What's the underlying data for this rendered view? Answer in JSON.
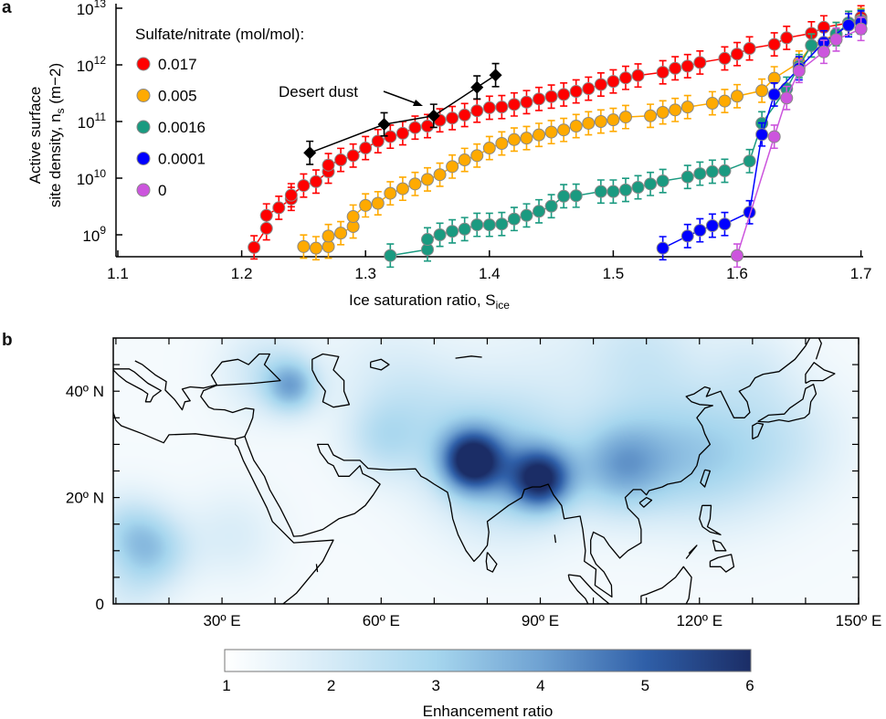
{
  "panel_a_letter": "a",
  "panel_b_letter": "b",
  "chart_data": [
    {
      "type": "scatter",
      "panel": "a",
      "xlabel": "Ice saturation ratio, S",
      "xlabel_sub": "ice",
      "ylabel_line1": "Active surface",
      "ylabel_line2": "site density, n",
      "ylabel_sub": "s",
      "ylabel_unit": "(m−2)",
      "xlim": [
        1.1,
        1.7
      ],
      "ylim": [
        410000000.0,
        10000000000000.0
      ],
      "yscale": "log",
      "x_ticks": [
        "1.1",
        "1.2",
        "1.3",
        "1.4",
        "1.5",
        "1.6",
        "1.7"
      ],
      "y_ticks": [
        {
          "base": "10",
          "exp": "9"
        },
        {
          "base": "10",
          "exp": "10"
        },
        {
          "base": "10",
          "exp": "11"
        },
        {
          "base": "10",
          "exp": "12"
        },
        {
          "base": "10",
          "exp": "13"
        }
      ],
      "grid": false,
      "legend_title": "Sulfate/nitrate (mol/mol):",
      "legend_placement": "top-left",
      "error_factor": 1.6,
      "annotation": "Desert dust",
      "series": [
        {
          "name": "0.017",
          "color": "#ff0000",
          "x": [
            1.21,
            1.22,
            1.22,
            1.23,
            1.24,
            1.24,
            1.25,
            1.26,
            1.27,
            1.27,
            1.28,
            1.29,
            1.3,
            1.31,
            1.32,
            1.33,
            1.34,
            1.35,
            1.36,
            1.37,
            1.38,
            1.39,
            1.4,
            1.41,
            1.42,
            1.43,
            1.44,
            1.45,
            1.46,
            1.47,
            1.48,
            1.49,
            1.5,
            1.51,
            1.52,
            1.54,
            1.55,
            1.56,
            1.57,
            1.59,
            1.6,
            1.61,
            1.63,
            1.64,
            1.66,
            1.67,
            1.69,
            1.7
          ],
          "y": [
            600000000.0,
            1300000000.0,
            2200000000.0,
            3000000000.0,
            4300000000.0,
            5000000000.0,
            7400000000.0,
            8700000000.0,
            13000000000.0,
            17000000000.0,
            21000000000.0,
            25000000000.0,
            34000000000.0,
            45000000000.0,
            54000000000.0,
            62000000000.0,
            78000000000.0,
            83000000000.0,
            105000000000.0,
            115000000000.0,
            130000000000.0,
            155000000000.0,
            175000000000.0,
            180000000000.0,
            200000000000.0,
            220000000000.0,
            250000000000.0,
            275000000000.0,
            300000000000.0,
            340000000000.0,
            380000000000.0,
            450000000000.0,
            510000000000.0,
            590000000000.0,
            650000000000.0,
            740000000000.0,
            870000000000.0,
            950000000000.0,
            1100000000000.0,
            1300000000000.0,
            1550000000000.0,
            1950000000000.0,
            2300000000000.0,
            3000000000000.0,
            3600000000000.0,
            4600000000000.0,
            5500000000000.0,
            6900000000000.0
          ]
        },
        {
          "name": "0.005",
          "color": "#ffaa00",
          "x": [
            1.25,
            1.26,
            1.27,
            1.27,
            1.28,
            1.29,
            1.29,
            1.3,
            1.31,
            1.32,
            1.33,
            1.34,
            1.35,
            1.36,
            1.37,
            1.38,
            1.39,
            1.4,
            1.41,
            1.42,
            1.43,
            1.44,
            1.45,
            1.46,
            1.47,
            1.48,
            1.49,
            1.5,
            1.51,
            1.53,
            1.54,
            1.55,
            1.56,
            1.58,
            1.59,
            1.6,
            1.62,
            1.63,
            1.65,
            1.66,
            1.68,
            1.69,
            1.7
          ],
          "y": [
            620000000.0,
            580000000.0,
            620000000.0,
            950000000.0,
            1070000000.0,
            1400000000.0,
            2100000000.0,
            3300000000.0,
            3600000000.0,
            5400000000.0,
            6500000000.0,
            7900000000.0,
            9500000000.0,
            11500000000.0,
            16000000000.0,
            21000000000.0,
            25000000000.0,
            34000000000.0,
            41000000000.0,
            48000000000.0,
            51000000000.0,
            58000000000.0,
            65000000000.0,
            71000000000.0,
            83000000000.0,
            93000000000.0,
            100000000000.0,
            107000000000.0,
            120000000000.0,
            126000000000.0,
            145000000000.0,
            160000000000.0,
            180000000000.0,
            210000000000.0,
            230000000000.0,
            280000000000.0,
            350000000000.0,
            580000000000.0,
            1100000000000.0,
            2200000000000.0,
            3500000000000.0,
            5500000000000.0,
            6200000000000.0
          ]
        },
        {
          "name": "0.0016",
          "color": "#1a9a80",
          "x": [
            1.32,
            1.35,
            1.35,
            1.36,
            1.37,
            1.38,
            1.39,
            1.4,
            1.41,
            1.42,
            1.43,
            1.44,
            1.45,
            1.46,
            1.47,
            1.49,
            1.5,
            1.51,
            1.52,
            1.53,
            1.54,
            1.56,
            1.57,
            1.58,
            1.59,
            1.61,
            1.62,
            1.64,
            1.65,
            1.66,
            1.67,
            1.68,
            1.69,
            1.7
          ],
          "y": [
            430000000.0,
            550000000.0,
            830000000.0,
            1000000000.0,
            1150000000.0,
            1260000000.0,
            1500000000.0,
            1500000000.0,
            1550000000.0,
            1900000000.0,
            2200000000.0,
            2600000000.0,
            3200000000.0,
            4800000000.0,
            4900000000.0,
            5800000000.0,
            5800000000.0,
            6200000000.0,
            6900000000.0,
            7900000000.0,
            8900000000.0,
            10500000000.0,
            12000000000.0,
            13000000000.0,
            13500000000.0,
            20000000000.0,
            93000000000.0,
            380000000000.0,
            950000000000.0,
            2200000000000.0,
            2500000000000.0,
            3500000000000.0,
            5500000000000.0,
            5900000000000.0
          ]
        },
        {
          "name": "0.0001",
          "color": "#0000ff",
          "x": [
            1.54,
            1.56,
            1.57,
            1.58,
            1.59,
            1.61,
            1.62,
            1.63,
            1.65,
            1.67,
            1.69,
            1.7
          ],
          "y": [
            580000000.0,
            950000000.0,
            1200000000.0,
            1450000000.0,
            1550000000.0,
            2500000000.0,
            59000000000.0,
            300000000000.0,
            870000000000.0,
            2500000000000.0,
            5000000000000.0,
            5600000000000.0
          ]
        },
        {
          "name": "0",
          "color": "#cc55dd",
          "x": [
            1.6,
            1.63,
            1.64,
            1.65,
            1.67,
            1.68,
            1.7
          ],
          "y": [
            430000000.0,
            54000000000.0,
            260000000000.0,
            780000000000.0,
            1700000000000.0,
            2800000000000.0,
            4300000000000.0
          ]
        }
      ],
      "desert_dust": {
        "color": "#000000",
        "x": [
          1.255,
          1.315,
          1.355,
          1.39,
          1.405
        ],
        "y": [
          28000000000.0,
          89000000000.0,
          126000000000.0,
          400000000000.0,
          660000000000.0
        ]
      }
    },
    {
      "type": "heatmap",
      "panel": "b",
      "lon_range": [
        9.5,
        150
      ],
      "lat_range": [
        0,
        50
      ],
      "x_ticks": [
        "30º E",
        "60º E",
        "90º E",
        "120º E",
        "150º E"
      ],
      "y_ticks": [
        "0",
        "20º N",
        "40º N"
      ],
      "colorbar_label": "Enhancement ratio",
      "colorbar_ticks": [
        "1",
        "2",
        "3",
        "4",
        "5",
        "6"
      ],
      "colorbar_range": [
        1,
        6
      ],
      "colormap": [
        "#ffffff",
        "#d6ebf7",
        "#a6d6ee",
        "#6fa2d2",
        "#2f5fa8",
        "#1b2d66"
      ],
      "hotspots": [
        {
          "lon": 77,
          "lat": 27,
          "value": 5.3,
          "radius": 4
        },
        {
          "lon": 90,
          "lat": 23.5,
          "value": 5.0,
          "radius": 4
        },
        {
          "lon": 83,
          "lat": 26,
          "value": 3.0,
          "radius": 9
        },
        {
          "lon": 105,
          "lat": 26,
          "value": 3.3,
          "radius": 6
        },
        {
          "lon": 115,
          "lat": 28,
          "value": 2.3,
          "radius": 8
        },
        {
          "lon": 125,
          "lat": 28,
          "value": 2.4,
          "radius": 9
        },
        {
          "lon": 138,
          "lat": 31,
          "value": 1.9,
          "radius": 8
        },
        {
          "lon": 43,
          "lat": 41,
          "value": 3.4,
          "radius": 3.5
        },
        {
          "lon": 38,
          "lat": 44,
          "value": 2.2,
          "radius": 6
        },
        {
          "lon": 60,
          "lat": 31,
          "value": 2.2,
          "radius": 5
        },
        {
          "lon": 68,
          "lat": 35,
          "value": 2.0,
          "radius": 8
        },
        {
          "lon": 17,
          "lat": 10,
          "value": 2.8,
          "radius": 5
        },
        {
          "lon": 12,
          "lat": 14,
          "value": 2.4,
          "radius": 5
        },
        {
          "lon": 32,
          "lat": 13,
          "value": 1.9,
          "radius": 6
        },
        {
          "lon": 95,
          "lat": 40,
          "value": 1.7,
          "radius": 14
        },
        {
          "lon": 110,
          "lat": 47,
          "value": 2.0,
          "radius": 8
        },
        {
          "lon": 60,
          "lat": 44,
          "value": 1.7,
          "radius": 8
        },
        {
          "lon": 130,
          "lat": 45,
          "value": 1.8,
          "radius": 6
        },
        {
          "lon": 12,
          "lat": 2,
          "value": 1.8,
          "radius": 5
        }
      ]
    }
  ]
}
